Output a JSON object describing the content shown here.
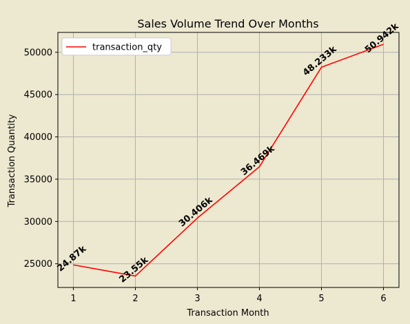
{
  "colors": {
    "figure_background": "#ede8d0",
    "axes_background": "#ede8d0",
    "line": "#ff0000",
    "grid": "#b0b0b0",
    "legend_background": "#ffffff"
  },
  "chart_data": {
    "type": "line",
    "title": "Sales Volume Trend Over Months",
    "xlabel": "Transaction Month",
    "ylabel": "Transaction Quantity",
    "x": [
      1,
      2,
      3,
      4,
      5,
      6
    ],
    "series": [
      {
        "name": "transaction_qty",
        "values": [
          24870,
          23550,
          30406,
          36469,
          48233,
          50942
        ],
        "color": "#ff0000",
        "data_labels": [
          "24.87k",
          "23.55k",
          "30.406k",
          "36.469k",
          "48.233k",
          "50.942k"
        ]
      }
    ],
    "xlim": [
      0.75,
      6.25
    ],
    "ylim": [
      22200,
      52350
    ],
    "xticks": [
      "1",
      "2",
      "3",
      "4",
      "5",
      "6"
    ],
    "yticks": [
      "25000",
      "30000",
      "35000",
      "40000",
      "45000",
      "50000"
    ],
    "grid": true,
    "legend_position": "upper-left",
    "data_label_rotation": "diagonal"
  }
}
